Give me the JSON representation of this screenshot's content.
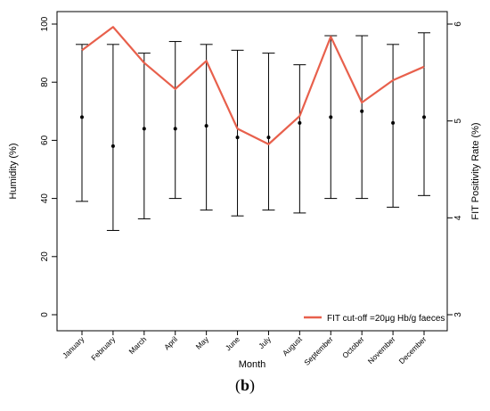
{
  "chart_data": {
    "type": "line",
    "xlabel": "Month",
    "ylabel_left": "Humidity (%)",
    "ylabel_right": "FIT Positivity Rate (%)",
    "categories": [
      "January",
      "February",
      "March",
      "April",
      "May",
      "June",
      "July",
      "August",
      "September",
      "October",
      "November",
      "December"
    ],
    "ylim_left": [
      0,
      100
    ],
    "yticks_left": [
      "0",
      "20",
      "40",
      "60",
      "80",
      "100"
    ],
    "ylim_right": [
      3,
      6
    ],
    "yticks_right": [
      "3",
      "4",
      "5",
      "6"
    ],
    "humidity": {
      "mean": [
        68,
        58,
        64,
        64,
        65,
        61,
        61,
        66,
        68,
        70,
        66,
        68
      ],
      "min": [
        39,
        29,
        33,
        40,
        36,
        34,
        36,
        35,
        40,
        40,
        37,
        41
      ],
      "max": [
        93,
        93,
        90,
        94,
        93,
        91,
        90,
        86,
        96,
        96,
        93,
        97
      ]
    },
    "series": [
      {
        "name": "FIT cut-off =20μg Hb/g faeces",
        "axis": "right",
        "color": "#e8604c",
        "values": [
          5.73,
          5.97,
          5.6,
          5.33,
          5.62,
          4.92,
          4.76,
          5.05,
          5.87,
          5.19,
          5.42,
          5.56
        ]
      }
    ],
    "legend_position": "bottom-right",
    "grid": false
  },
  "caption": "b"
}
